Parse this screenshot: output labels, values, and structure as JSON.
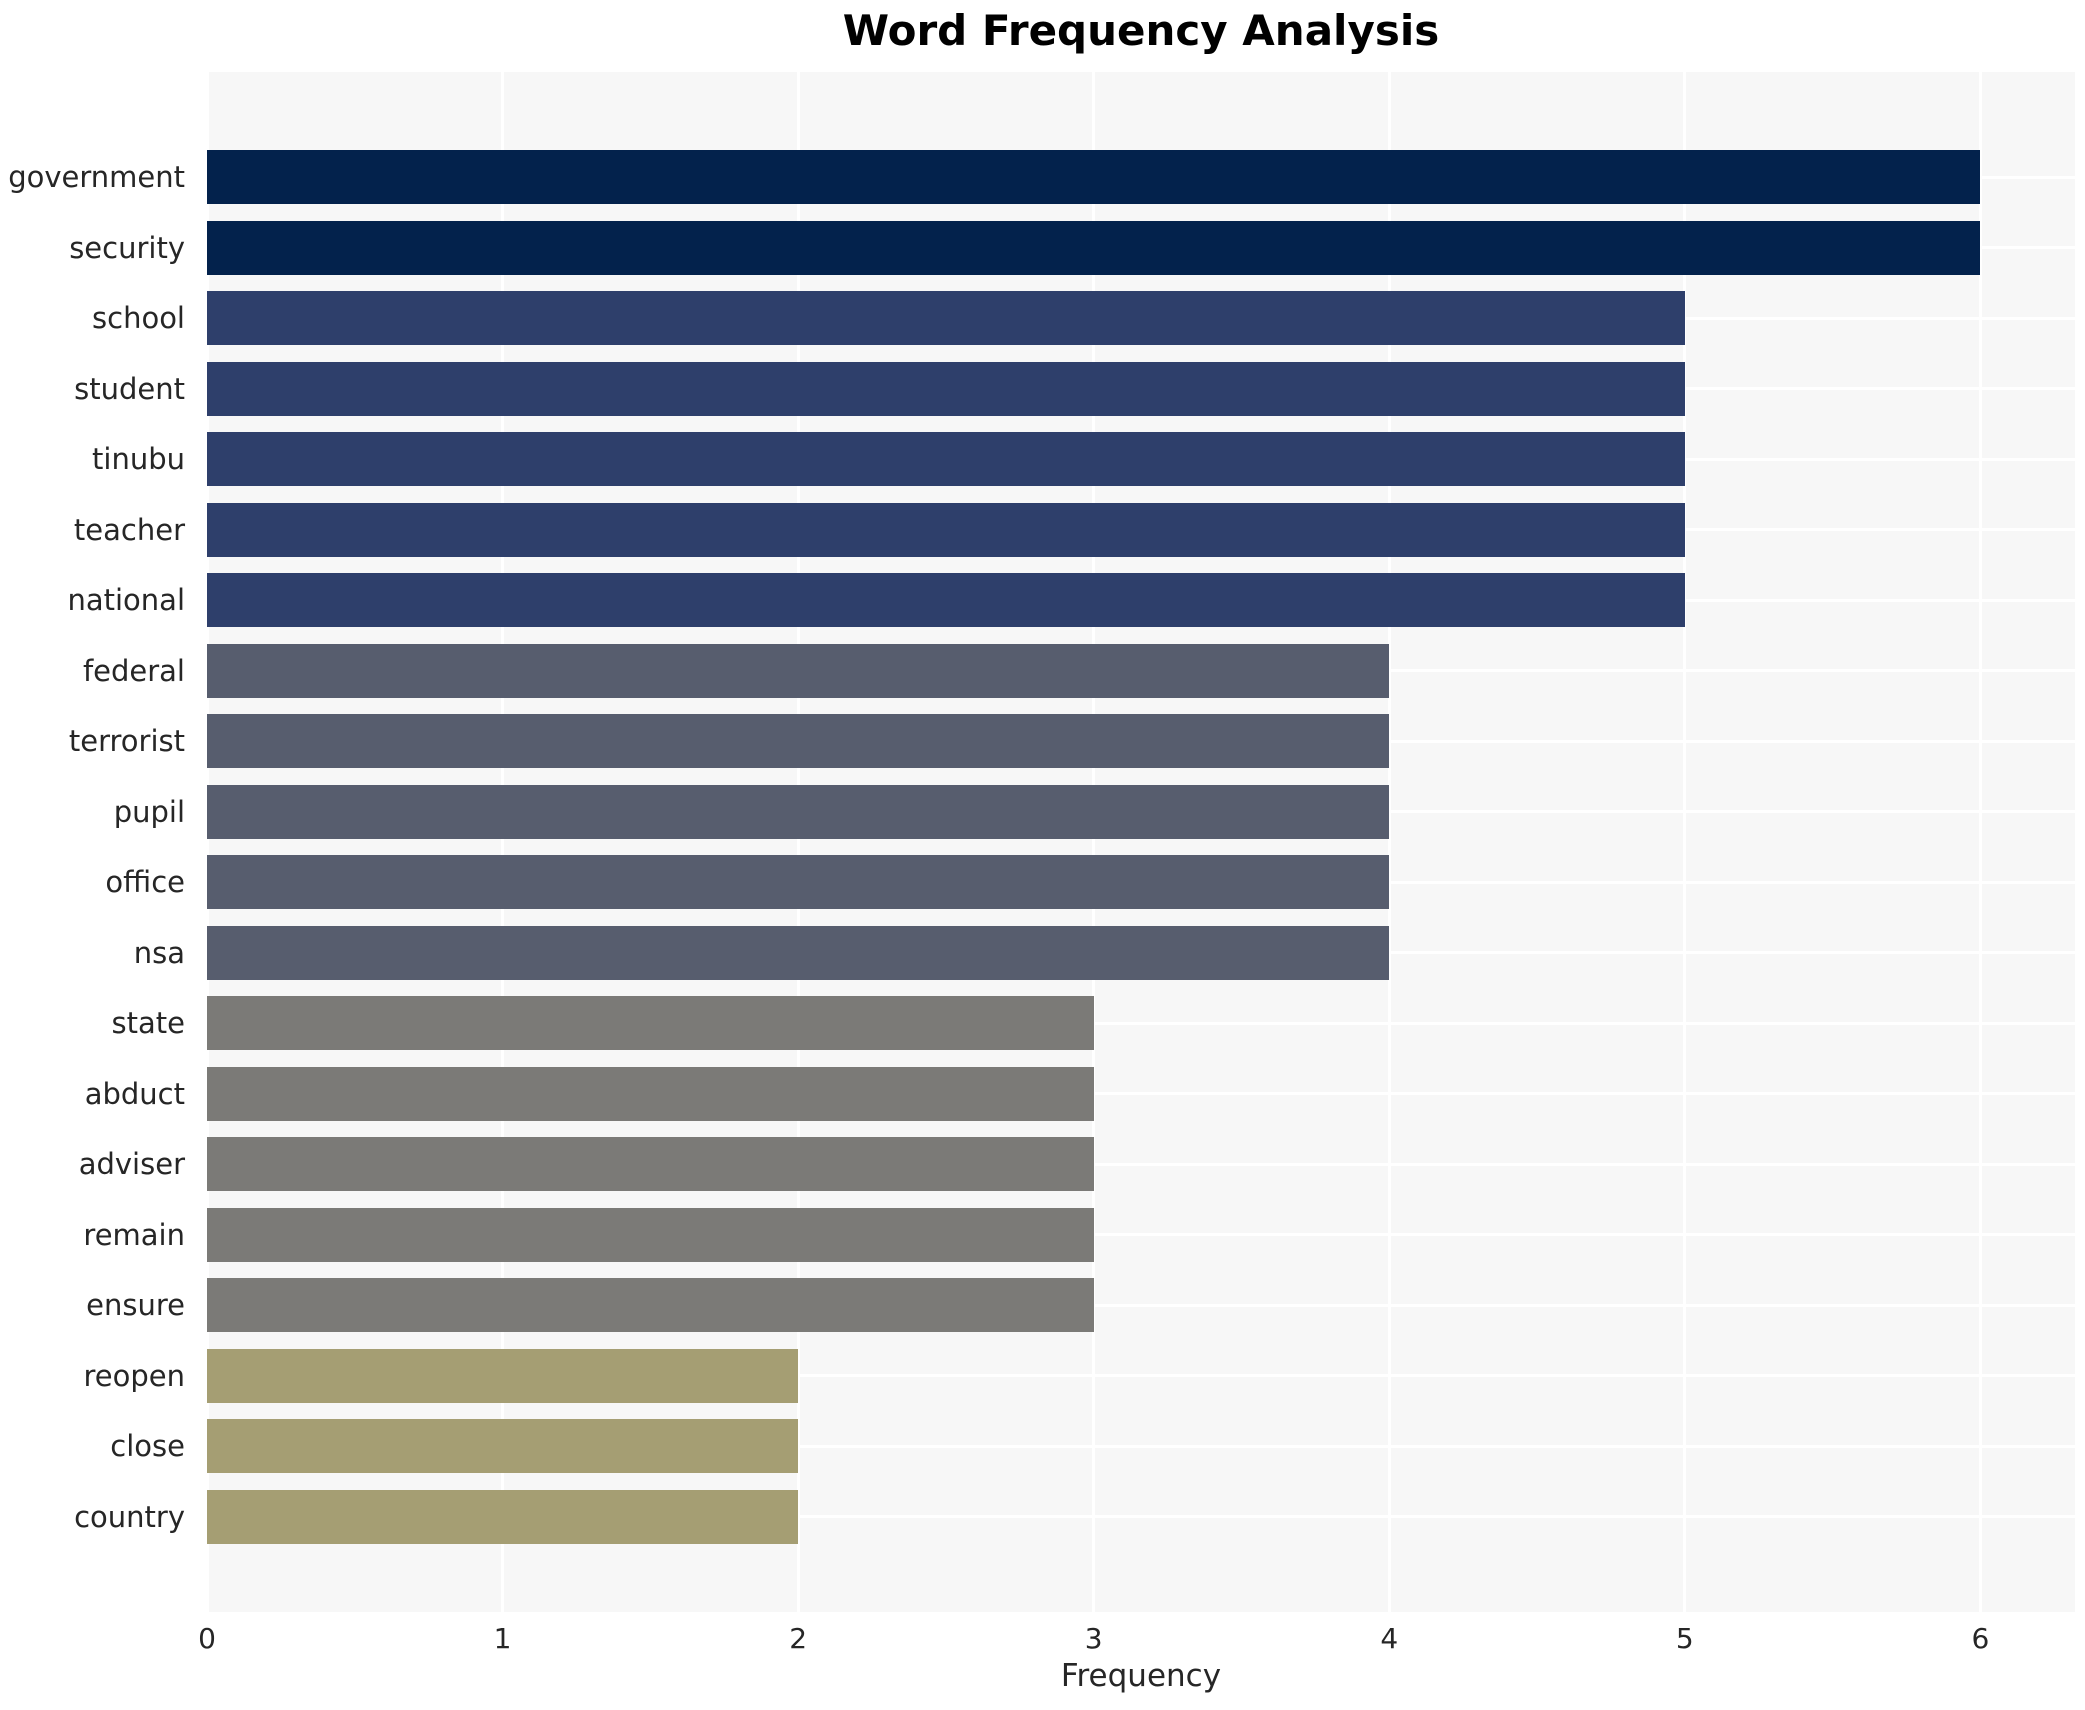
{
  "chart_data": {
    "type": "bar",
    "orientation": "horizontal",
    "title": "Word Frequency Analysis",
    "xlabel": "Frequency",
    "ylabel": "",
    "categories": [
      "government",
      "security",
      "school",
      "student",
      "tinubu",
      "teacher",
      "national",
      "federal",
      "terrorist",
      "pupil",
      "office",
      "nsa",
      "state",
      "abduct",
      "adviser",
      "remain",
      "ensure",
      "reopen",
      "close",
      "country"
    ],
    "values": [
      6,
      6,
      5,
      5,
      5,
      5,
      5,
      4,
      4,
      4,
      4,
      4,
      3,
      3,
      3,
      3,
      3,
      2,
      2,
      2
    ],
    "xticks": [
      0,
      1,
      2,
      3,
      4,
      5,
      6
    ],
    "xlim": [
      0,
      6.32
    ],
    "grid": true,
    "legend": null,
    "colors": {
      "bar_by_value": {
        "6": "#03224c",
        "5": "#2e3f6b",
        "4": "#575d6e",
        "3": "#7b7a77",
        "2": "#a59e73"
      },
      "plot_background": "#f7f7f7",
      "gridline": "#ffffff",
      "text": "#262626",
      "title_text": "#000000",
      "page_background": "#ffffff"
    }
  }
}
